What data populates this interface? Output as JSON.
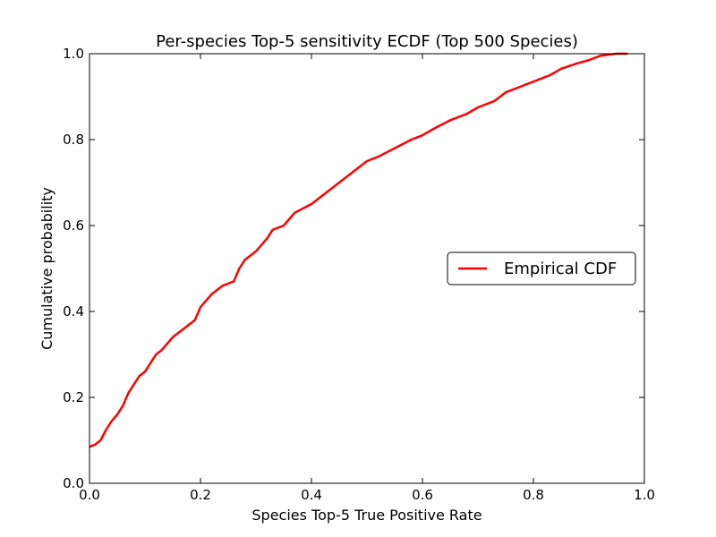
{
  "chart_data": {
    "type": "line",
    "title": "Per-species Top-5 sensitivity ECDF (Top 500 Species)",
    "xlabel": "Species Top-5 True Positive Rate",
    "ylabel": "Cumulative probability",
    "xlim": [
      0.0,
      1.0
    ],
    "ylim": [
      0.0,
      1.0
    ],
    "xticks": [
      "0.0",
      "0.2",
      "0.4",
      "0.6",
      "0.8",
      "1.0"
    ],
    "yticks": [
      "0.0",
      "0.2",
      "0.4",
      "0.6",
      "0.8",
      "1.0"
    ],
    "grid": false,
    "legend_position": "center-right",
    "series": [
      {
        "name": "Empirical CDF",
        "color": "#ff0000",
        "x": [
          0.0,
          0.01,
          0.02,
          0.03,
          0.04,
          0.05,
          0.06,
          0.07,
          0.08,
          0.09,
          0.1,
          0.11,
          0.12,
          0.13,
          0.15,
          0.17,
          0.19,
          0.2,
          0.22,
          0.24,
          0.26,
          0.27,
          0.28,
          0.3,
          0.32,
          0.33,
          0.35,
          0.37,
          0.4,
          0.42,
          0.43,
          0.45,
          0.48,
          0.5,
          0.52,
          0.55,
          0.58,
          0.6,
          0.62,
          0.65,
          0.68,
          0.7,
          0.73,
          0.75,
          0.78,
          0.8,
          0.83,
          0.85,
          0.88,
          0.9,
          0.92,
          0.95,
          0.97
        ],
        "y": [
          0.085,
          0.09,
          0.1,
          0.125,
          0.145,
          0.16,
          0.18,
          0.21,
          0.23,
          0.25,
          0.26,
          0.28,
          0.3,
          0.31,
          0.34,
          0.36,
          0.38,
          0.41,
          0.44,
          0.46,
          0.47,
          0.5,
          0.52,
          0.54,
          0.57,
          0.59,
          0.6,
          0.63,
          0.65,
          0.67,
          0.68,
          0.7,
          0.73,
          0.75,
          0.76,
          0.78,
          0.8,
          0.81,
          0.825,
          0.845,
          0.86,
          0.875,
          0.89,
          0.91,
          0.925,
          0.935,
          0.95,
          0.965,
          0.978,
          0.985,
          0.995,
          1.0,
          1.0
        ]
      }
    ]
  }
}
